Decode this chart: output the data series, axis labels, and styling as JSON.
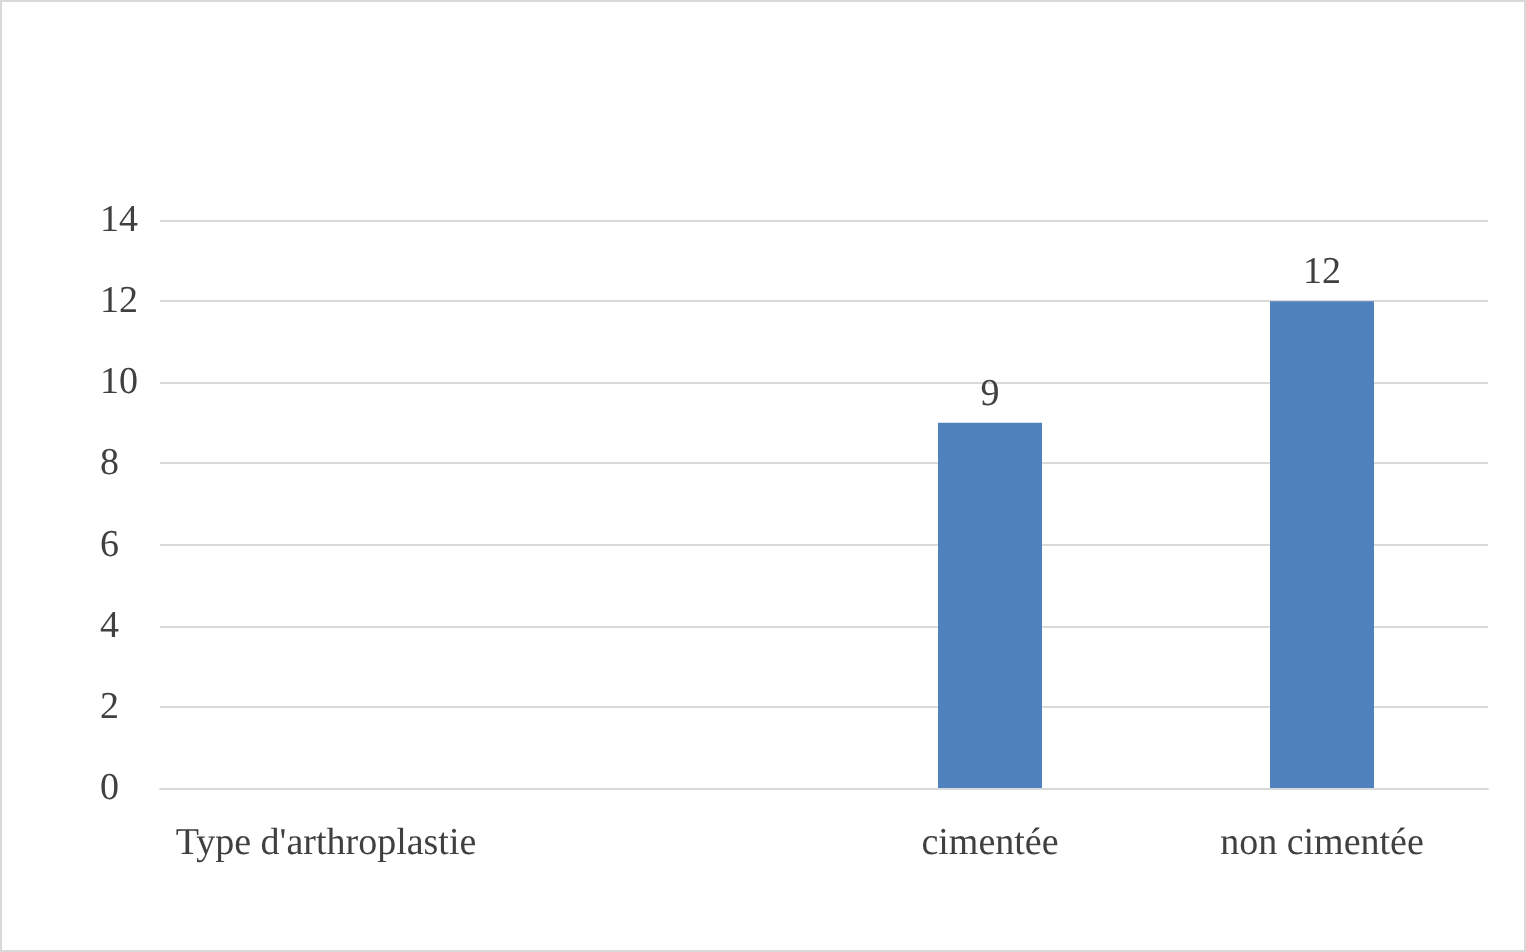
{
  "chart_data": {
    "type": "bar",
    "categories": [
      "Type d'arthroplastie",
      null,
      "cimentée",
      "non cimentée"
    ],
    "values": [
      null,
      null,
      9,
      12
    ],
    "color": "#4f81bd",
    "ylim": [
      0,
      14
    ],
    "yticks": [
      0,
      2,
      4,
      6,
      8,
      10,
      12,
      14
    ],
    "grid": "y",
    "data_labels": true
  }
}
